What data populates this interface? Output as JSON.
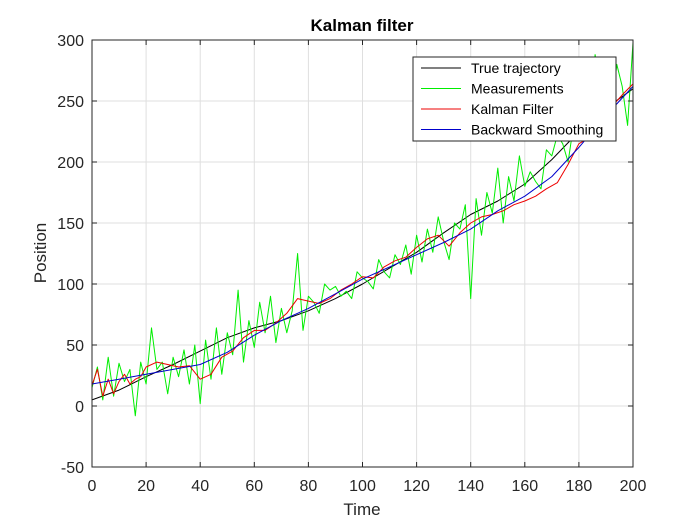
{
  "chart_data": {
    "type": "line",
    "title": "Kalman filter",
    "xlabel": "Time",
    "ylabel": "Position",
    "xlim": [
      0,
      200
    ],
    "ylim": [
      -50,
      300
    ],
    "xticks": [
      0,
      20,
      40,
      60,
      80,
      100,
      120,
      140,
      160,
      180,
      200
    ],
    "yticks": [
      -50,
      0,
      50,
      100,
      150,
      200,
      250,
      300
    ],
    "grid": true,
    "legend": {
      "position": "top-right"
    },
    "series": [
      {
        "name": "True trajectory",
        "color": "#000000",
        "x": [
          0,
          10,
          20,
          30,
          40,
          50,
          60,
          70,
          80,
          90,
          100,
          110,
          120,
          130,
          140,
          150,
          160,
          170,
          180,
          190,
          200
        ],
        "y": [
          5,
          13,
          24,
          34,
          45,
          56,
          64,
          70,
          78,
          88,
          100,
          113,
          126,
          142,
          157,
          168,
          182,
          202,
          225,
          244,
          260
        ]
      },
      {
        "name": "Measurements",
        "color": "#00ee00",
        "x": [
          0,
          2,
          4,
          6,
          8,
          10,
          12,
          14,
          16,
          18,
          20,
          22,
          24,
          26,
          28,
          30,
          32,
          34,
          36,
          38,
          40,
          42,
          44,
          46,
          48,
          50,
          52,
          54,
          56,
          58,
          60,
          62,
          64,
          66,
          68,
          70,
          72,
          74,
          76,
          78,
          80,
          82,
          84,
          86,
          88,
          90,
          92,
          94,
          96,
          98,
          100,
          102,
          104,
          106,
          108,
          110,
          112,
          114,
          116,
          118,
          120,
          122,
          124,
          126,
          128,
          130,
          132,
          134,
          136,
          138,
          140,
          142,
          144,
          146,
          148,
          150,
          152,
          154,
          156,
          158,
          160,
          162,
          164,
          166,
          168,
          170,
          172,
          174,
          176,
          178,
          180,
          182,
          184,
          186,
          188,
          190,
          192,
          194,
          196,
          198,
          200
        ],
        "y": [
          15,
          32,
          5,
          40,
          8,
          35,
          20,
          30,
          -8,
          36,
          18,
          64,
          30,
          36,
          10,
          40,
          24,
          46,
          18,
          50,
          2,
          54,
          22,
          64,
          26,
          60,
          42,
          95,
          36,
          70,
          48,
          85,
          60,
          90,
          52,
          80,
          60,
          78,
          125,
          62,
          90,
          85,
          76,
          100,
          95,
          98,
          90,
          94,
          88,
          110,
          105,
          102,
          96,
          120,
          110,
          105,
          124,
          116,
          132,
          108,
          140,
          118,
          145,
          126,
          155,
          135,
          120,
          150,
          145,
          165,
          88,
          170,
          140,
          175,
          158,
          195,
          150,
          188,
          168,
          205,
          180,
          192,
          184,
          178,
          210,
          205,
          222,
          215,
          200,
          230,
          238,
          260,
          240,
          288,
          260,
          235,
          240,
          280,
          262,
          230,
          298
        ]
      },
      {
        "name": "Kalman Filter",
        "color": "#ee0000",
        "x": [
          0,
          2,
          4,
          6,
          8,
          10,
          12,
          14,
          16,
          18,
          20,
          24,
          28,
          32,
          36,
          40,
          44,
          48,
          52,
          56,
          60,
          64,
          68,
          72,
          76,
          80,
          84,
          88,
          92,
          96,
          100,
          104,
          108,
          112,
          116,
          120,
          124,
          128,
          132,
          136,
          140,
          144,
          148,
          152,
          156,
          160,
          164,
          168,
          172,
          176,
          180,
          184,
          188,
          192,
          196,
          200
        ],
        "y": [
          17,
          30,
          8,
          22,
          10,
          20,
          26,
          18,
          22,
          24,
          32,
          36,
          34,
          32,
          33,
          22,
          26,
          40,
          45,
          56,
          62,
          62,
          68,
          76,
          88,
          86,
          84,
          88,
          95,
          100,
          106,
          105,
          114,
          119,
          122,
          130,
          137,
          140,
          131,
          142,
          150,
          155,
          157,
          160,
          165,
          168,
          172,
          178,
          183,
          198,
          215,
          220,
          232,
          245,
          255,
          264
        ]
      },
      {
        "name": "Backward Smoothing",
        "color": "#0000cc",
        "x": [
          0,
          10,
          20,
          30,
          40,
          50,
          60,
          70,
          80,
          90,
          100,
          110,
          120,
          130,
          140,
          150,
          160,
          170,
          180,
          190,
          200
        ],
        "y": [
          18,
          22,
          26,
          30,
          34,
          44,
          58,
          70,
          80,
          92,
          104,
          114,
          124,
          134,
          145,
          160,
          172,
          188,
          212,
          238,
          262
        ]
      }
    ]
  }
}
